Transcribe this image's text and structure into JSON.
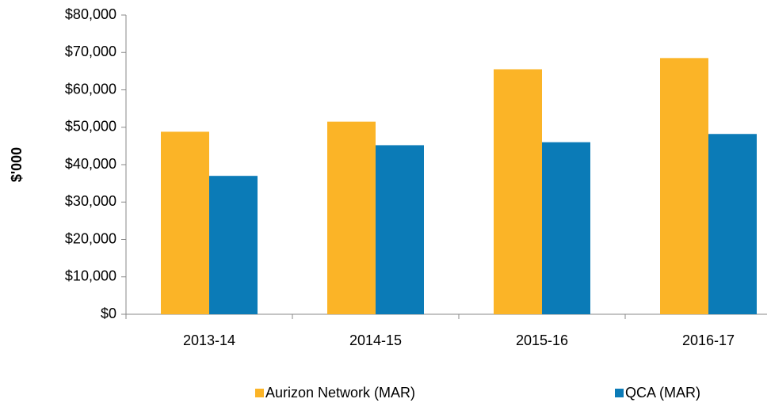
{
  "chart_data": {
    "type": "bar",
    "y_label": "$'000",
    "categories": [
      "2013-14",
      "2014-15",
      "2015-16",
      "2016-17"
    ],
    "series": [
      {
        "name": "Aurizon Network (MAR)",
        "color": "#fbb427",
        "values": [
          48800,
          51500,
          65500,
          68500
        ]
      },
      {
        "name": "QCA (MAR)",
        "color": "#0b7bb7",
        "values": [
          37000,
          45200,
          46000,
          48200
        ]
      }
    ],
    "ylim": [
      0,
      80000
    ],
    "yticks": [
      {
        "value": 0,
        "label": "$0"
      },
      {
        "value": 10000,
        "label": "$10,000"
      },
      {
        "value": 20000,
        "label": "$20,000"
      },
      {
        "value": 30000,
        "label": "$30,000"
      },
      {
        "value": 40000,
        "label": "$40,000"
      },
      {
        "value": 50000,
        "label": "$50,000"
      },
      {
        "value": 60000,
        "label": "$60,000"
      },
      {
        "value": 70000,
        "label": "$70,000"
      },
      {
        "value": 80000,
        "label": "$80,000"
      }
    ],
    "grid": false,
    "legend": "bottom"
  }
}
